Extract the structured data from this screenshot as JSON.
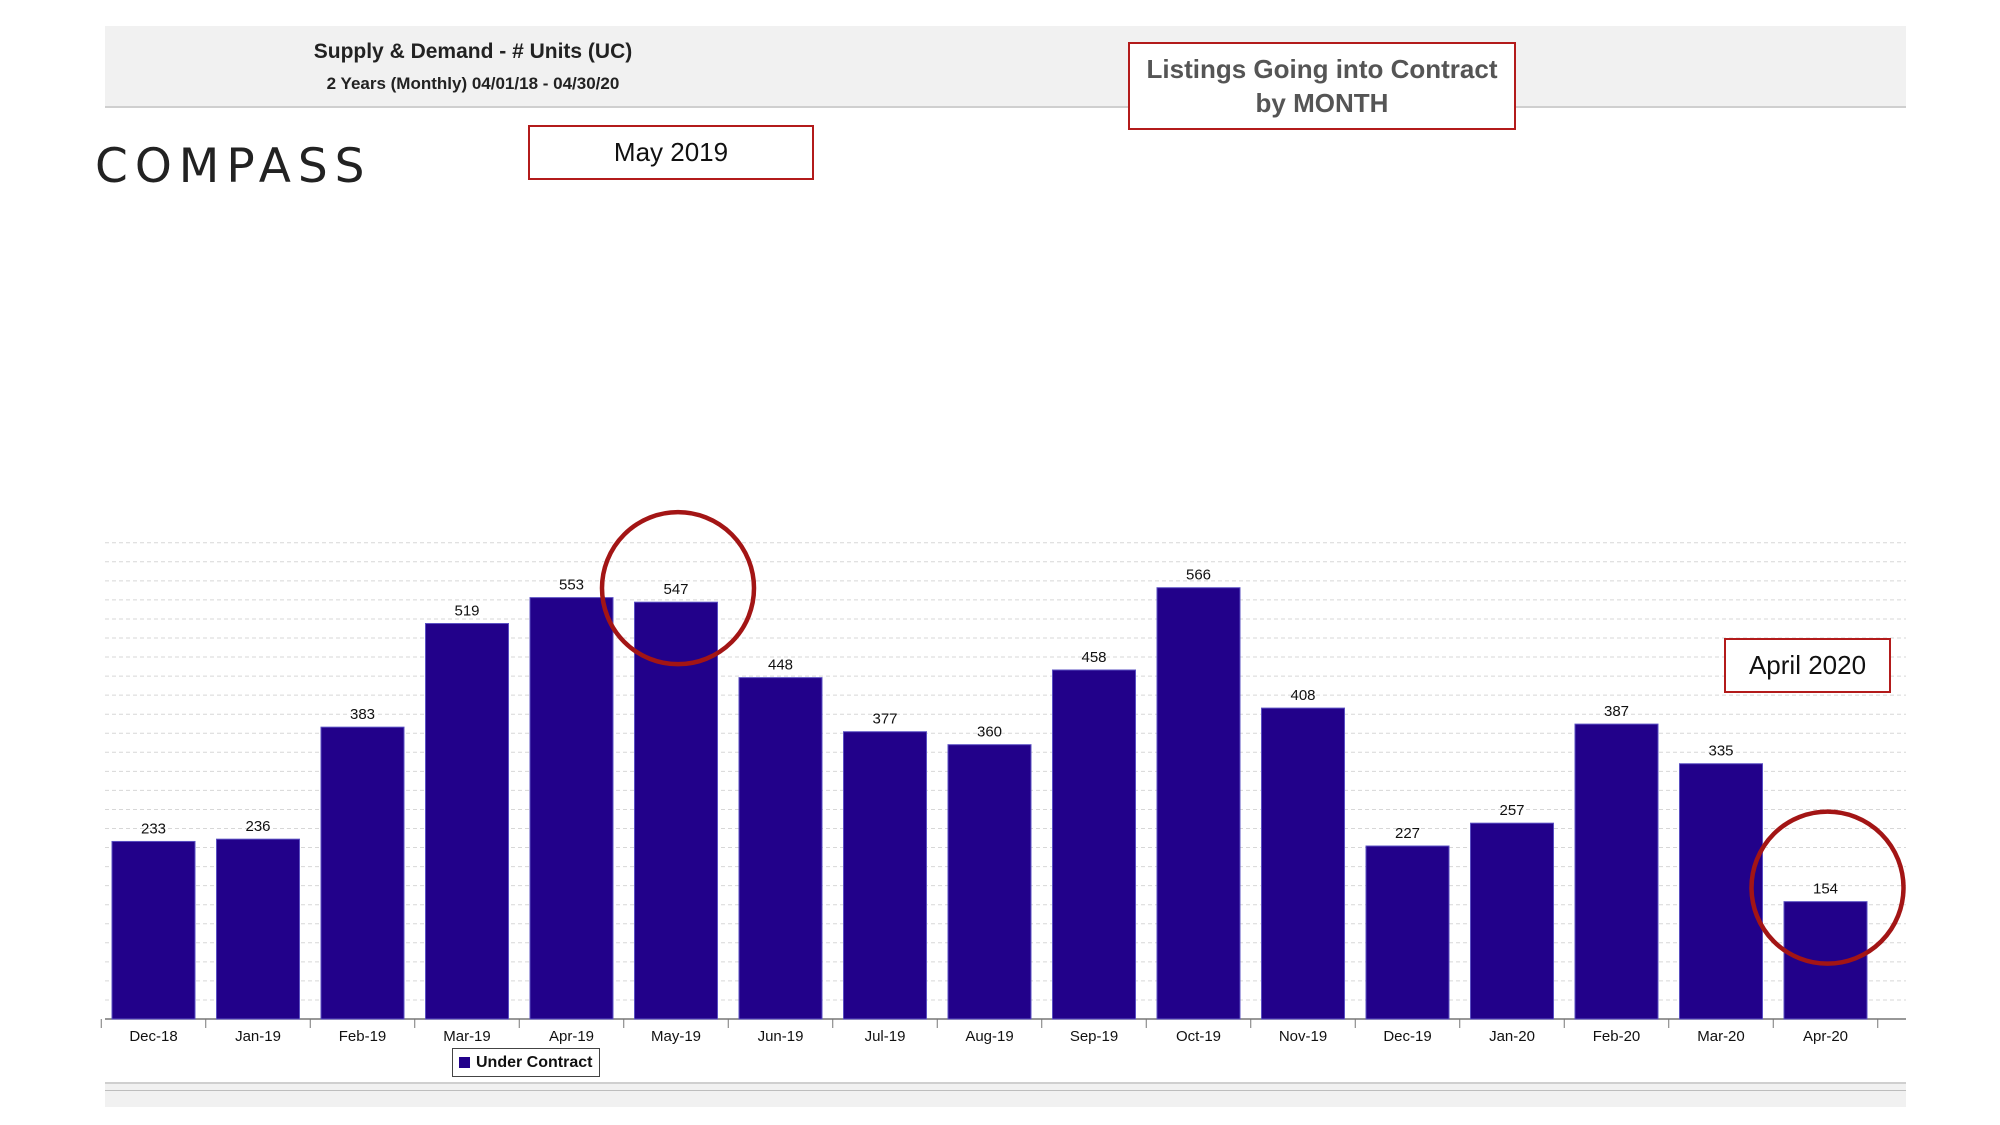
{
  "header": {
    "title": "Supply & Demand - # Units (UC)",
    "subtitle": "2 Years (Monthly) 04/01/18 - 04/30/20"
  },
  "brand": {
    "logo_text": "COMPASS"
  },
  "callouts": {
    "headline": "Listings Going into Contract by MONTH",
    "may": "May 2019",
    "april": "April 2020"
  },
  "legend": {
    "label": "Under Contract"
  },
  "colors": {
    "bar": "#22018a",
    "callout_border": "#b31b1b",
    "circle": "#a31515"
  },
  "chart_data": {
    "type": "bar",
    "title": "Supply & Demand - # Units (UC)",
    "subtitle": "2 Years (Monthly) 04/01/18 - 04/30/20",
    "categories": [
      "Dec-18",
      "Jan-19",
      "Feb-19",
      "Mar-19",
      "Apr-19",
      "May-19",
      "Jun-19",
      "Jul-19",
      "Aug-19",
      "Sep-19",
      "Oct-19",
      "Nov-19",
      "Dec-19",
      "Jan-20",
      "Feb-20",
      "Mar-20",
      "Apr-20"
    ],
    "series": [
      {
        "name": "Under Contract",
        "values": [
          233,
          236,
          383,
          519,
          553,
          547,
          448,
          377,
          360,
          458,
          566,
          408,
          227,
          257,
          387,
          335,
          154
        ]
      }
    ],
    "xlabel": "",
    "ylabel": "",
    "ylim": [
      0,
      600
    ],
    "grid": true,
    "legend_position": "bottom-left",
    "highlighted": [
      "May-19",
      "Apr-20"
    ]
  }
}
